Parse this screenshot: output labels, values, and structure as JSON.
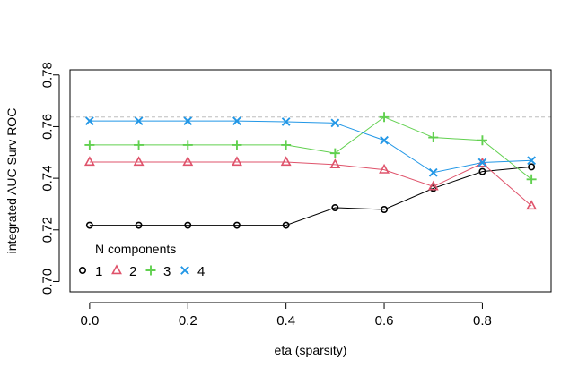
{
  "chart_data": {
    "type": "line",
    "xlabel": "eta (sparsity)",
    "ylabel": "integrated AUC Surv ROC",
    "xlim": [
      -0.04,
      0.94
    ],
    "ylim": [
      0.696,
      0.782
    ],
    "x_ticks": [
      0.0,
      0.2,
      0.4,
      0.6,
      0.8
    ],
    "x_tick_labels": [
      "0.0",
      "0.2",
      "0.4",
      "0.6",
      "0.8"
    ],
    "y_ticks": [
      0.7,
      0.72,
      0.74,
      0.76,
      0.78
    ],
    "y_tick_labels": [
      "0.70",
      "0.72",
      "0.74",
      "0.76",
      "0.78"
    ],
    "grid": false,
    "reference_line": {
      "y": 0.7637,
      "style": "dashed",
      "color": "#bebebe"
    },
    "legend": {
      "title": "N components",
      "placement": "bottom-left",
      "orientation": "horizontal"
    },
    "x": [
      0.0,
      0.1,
      0.2,
      0.3,
      0.4,
      0.5,
      0.6,
      0.7,
      0.8,
      0.9
    ],
    "series": [
      {
        "name": "1",
        "color": "#000000",
        "marker": "circle",
        "values": [
          0.7218,
          0.7218,
          0.7218,
          0.7218,
          0.7218,
          0.7286,
          0.7279,
          0.7361,
          0.7426,
          0.7444
        ]
      },
      {
        "name": "2",
        "color": "#df536b",
        "marker": "triangle",
        "values": [
          0.7463,
          0.7463,
          0.7463,
          0.7463,
          0.7463,
          0.7453,
          0.7433,
          0.7368,
          0.7458,
          0.7293
        ]
      },
      {
        "name": "3",
        "color": "#61d04f",
        "marker": "plus",
        "values": [
          0.7529,
          0.7529,
          0.7529,
          0.7529,
          0.7529,
          0.7497,
          0.7637,
          0.7558,
          0.7547,
          0.7396
        ]
      },
      {
        "name": "4",
        "color": "#2297e6",
        "marker": "cross",
        "values": [
          0.7622,
          0.7622,
          0.7622,
          0.7622,
          0.7619,
          0.7614,
          0.7547,
          0.7422,
          0.7461,
          0.7469
        ]
      }
    ]
  }
}
